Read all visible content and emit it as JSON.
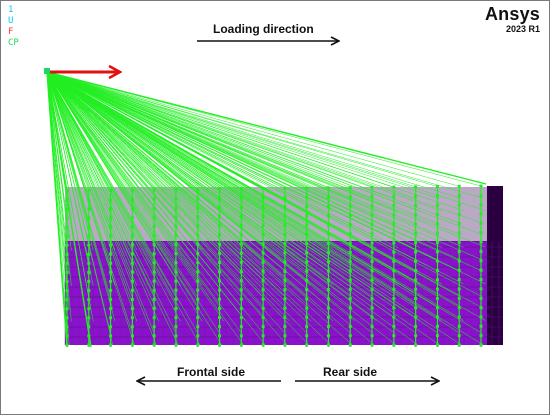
{
  "legend": {
    "items": [
      {
        "label": "1",
        "color": "#00c8ff"
      },
      {
        "label": "U",
        "color": "#00c8ff"
      },
      {
        "label": "F",
        "color": "#ff3b3b"
      },
      {
        "label": "CP",
        "color": "#1ed760"
      }
    ]
  },
  "brand": {
    "name": "Ansys",
    "version": "2023 R1"
  },
  "annotations": {
    "loading_direction": "Loading direction",
    "frontal_side": "Frontal side",
    "rear_side": "Rear side"
  },
  "colors": {
    "coupling_lines": "#22ee22",
    "mesh_body": "#8a12cc",
    "mesh_dark": "#2b0040",
    "force_arrow": "#e21010",
    "annotation_arrow": "#111111"
  }
}
